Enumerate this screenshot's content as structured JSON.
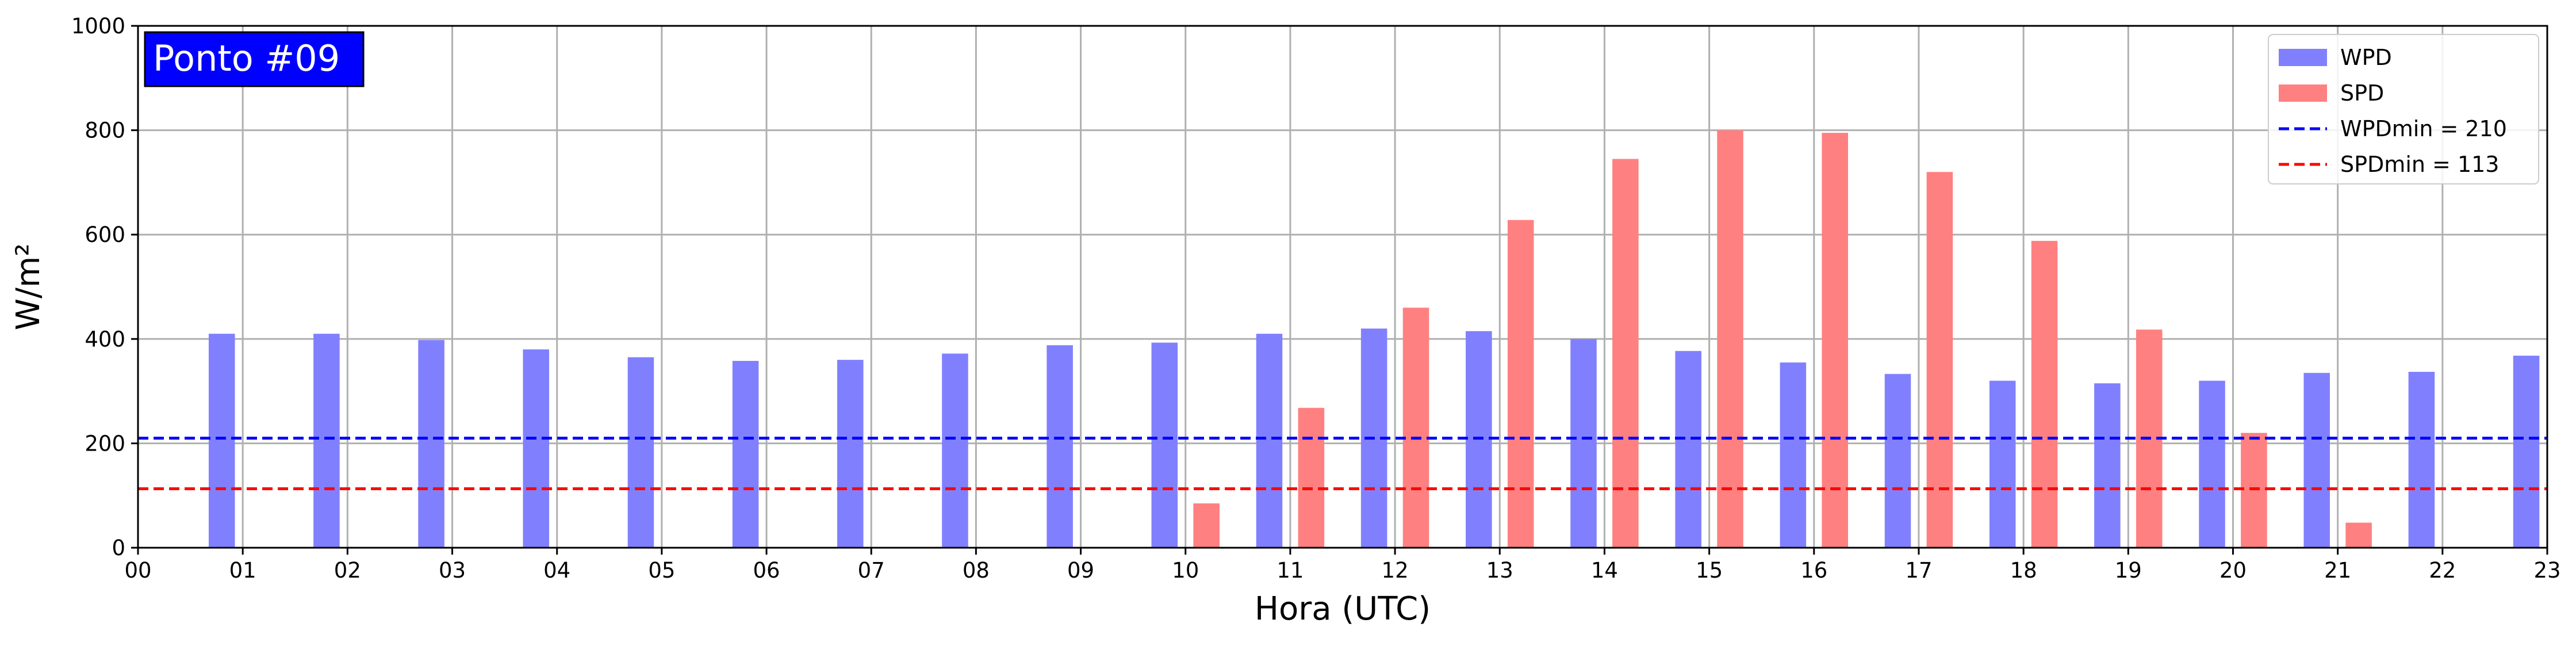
{
  "chart_data": {
    "type": "bar",
    "title": "Ponto #09",
    "xlabel": "Hora (UTC)",
    "ylabel": "W/m²",
    "ylim": [
      0,
      1000
    ],
    "yticks": [
      "0",
      "200",
      "400",
      "600",
      "800",
      "1000"
    ],
    "xlim": [
      0,
      23
    ],
    "categories": [
      "00",
      "01",
      "02",
      "03",
      "04",
      "05",
      "06",
      "07",
      "08",
      "09",
      "10",
      "11",
      "12",
      "13",
      "14",
      "15",
      "16",
      "17",
      "18",
      "19",
      "20",
      "21",
      "22",
      "23"
    ],
    "series": [
      {
        "name": "WPD",
        "color": "#8080ff",
        "values": [
          null,
          410,
          410,
          398,
          380,
          365,
          358,
          360,
          372,
          388,
          393,
          410,
          420,
          415,
          400,
          377,
          355,
          333,
          320,
          315,
          320,
          335,
          337,
          368
        ]
      },
      {
        "name": "SPD",
        "color": "#ff8080",
        "values": [
          null,
          null,
          null,
          null,
          null,
          null,
          null,
          null,
          null,
          null,
          85,
          268,
          460,
          628,
          745,
          800,
          795,
          720,
          588,
          418,
          220,
          48,
          null,
          null
        ]
      }
    ],
    "reference_lines": [
      {
        "name": "WPDmin = 210",
        "value": 210,
        "color": "#0000ff",
        "style": "dashed"
      },
      {
        "name": "SPDmin = 113",
        "value": 113,
        "color": "#ff0000",
        "style": "dashed"
      }
    ],
    "legend": {
      "placement": "top-right",
      "entries": [
        "WPD",
        "SPD",
        "WPDmin = 210",
        "SPDmin = 113"
      ]
    },
    "grid": true
  }
}
